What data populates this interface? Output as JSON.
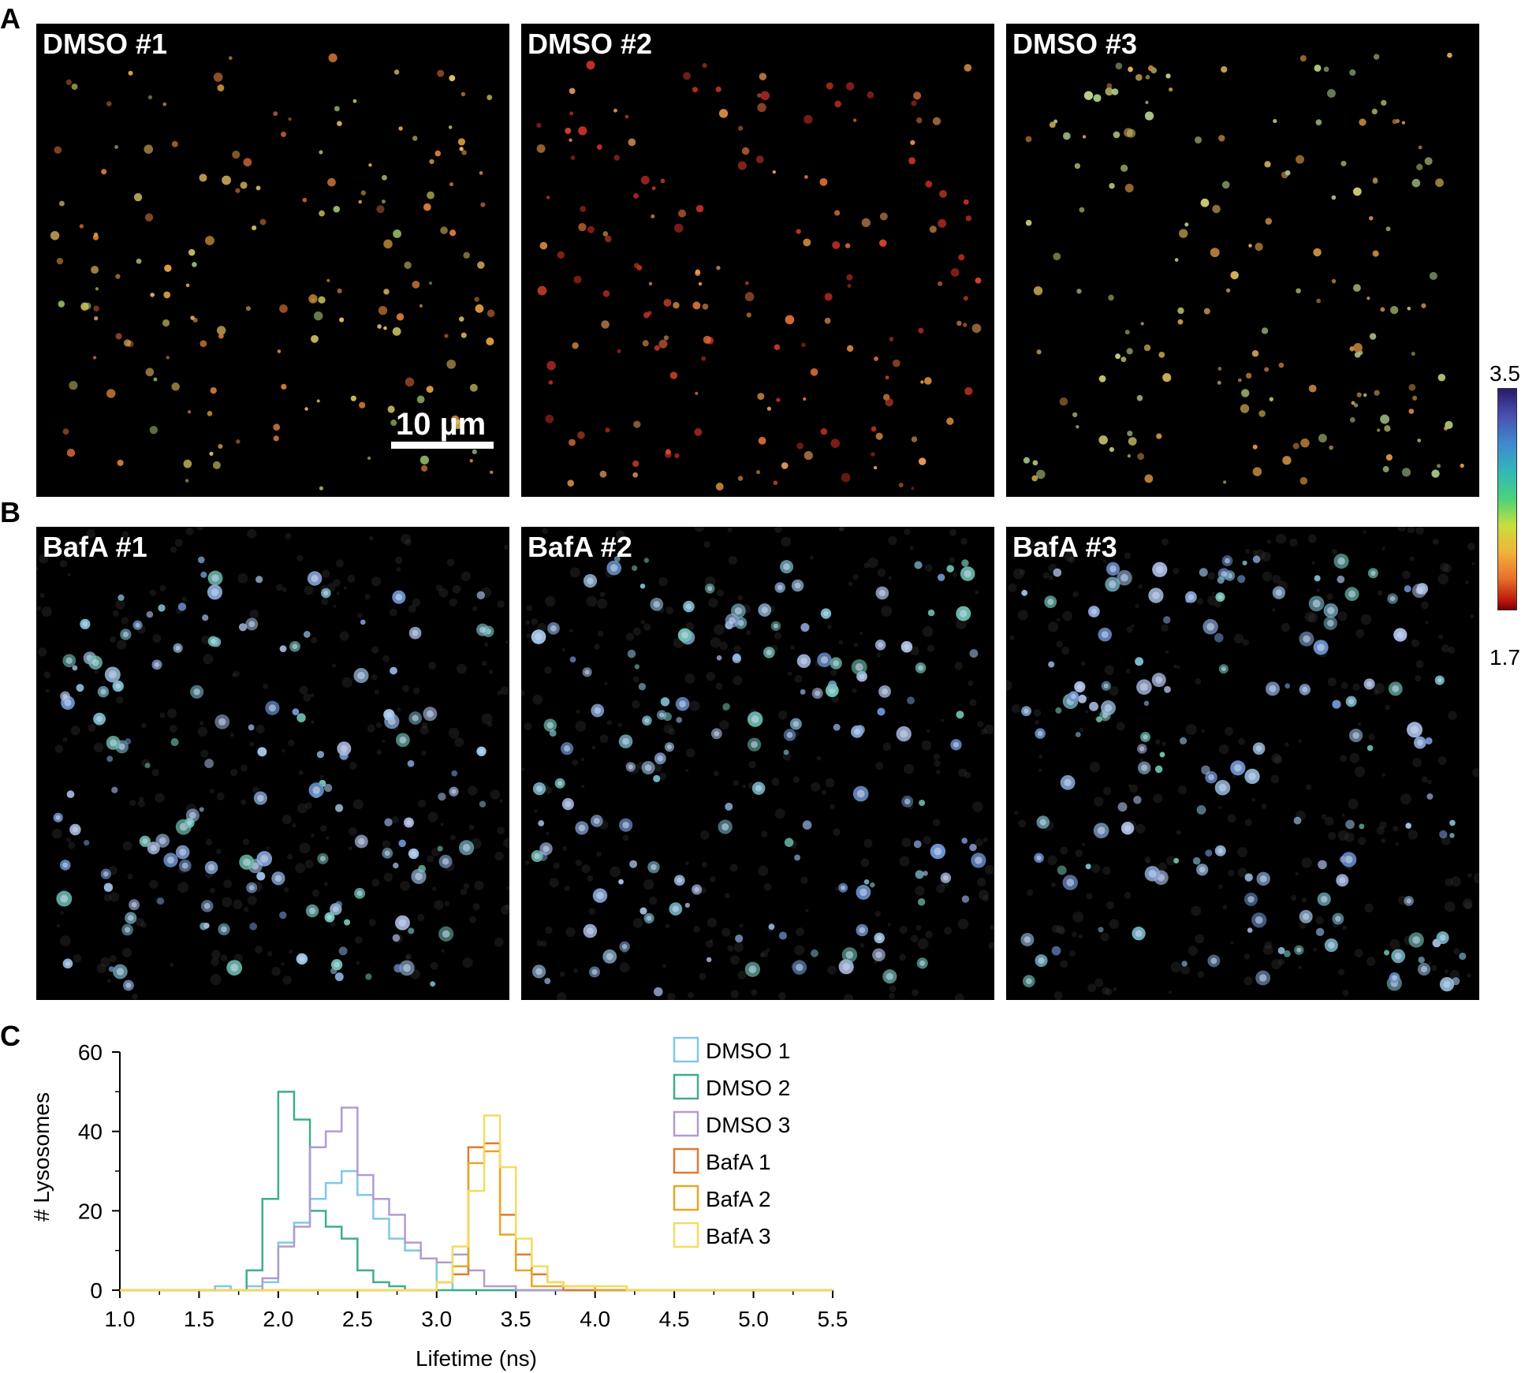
{
  "panels": {
    "A": "A",
    "B": "B",
    "C": "C"
  },
  "images": [
    {
      "label": "DMSO #1",
      "tone": "warm",
      "seed": 11
    },
    {
      "label": "DMSO #2",
      "tone": "red",
      "seed": 23
    },
    {
      "label": "DMSO #3",
      "tone": "warm-light",
      "seed": 37
    },
    {
      "label": "BafA #1",
      "tone": "blue",
      "seed": 41
    },
    {
      "label": "BafA #2",
      "tone": "blue",
      "seed": 53
    },
    {
      "label": "BafA #3",
      "tone": "blue",
      "seed": 67
    }
  ],
  "scale_bar": {
    "label": "10 µm"
  },
  "colorbar": {
    "max": "3.5",
    "min": "1.7"
  },
  "chart_data": {
    "type": "line",
    "xlabel": "Lifetime (ns)",
    "ylabel": "# Lysosomes",
    "xlim": [
      1.0,
      5.5
    ],
    "ylim": [
      0,
      60
    ],
    "xticks": [
      "1.0",
      "1.5",
      "2.0",
      "2.5",
      "3.0",
      "3.5",
      "4.0",
      "4.5",
      "5.0",
      "5.5"
    ],
    "yticks": [
      "0",
      "20",
      "40",
      "60"
    ],
    "bin_width": 0.1,
    "bin_starts": [
      1.6,
      1.7,
      1.8,
      1.9,
      2.0,
      2.1,
      2.2,
      2.3,
      2.4,
      2.5,
      2.6,
      2.7,
      2.8,
      2.9,
      3.0,
      3.1,
      3.2,
      3.3,
      3.4,
      3.5,
      3.6,
      3.7,
      3.8,
      3.9,
      4.0,
      4.1,
      4.2
    ],
    "legend_position": "top-right",
    "series": [
      {
        "name": "DMSO 1",
        "color": "#7ec8ea",
        "values": [
          1,
          0,
          1,
          2,
          12,
          17,
          23,
          27,
          30,
          24,
          18,
          13,
          10,
          8,
          2,
          0,
          0,
          0,
          0,
          0,
          0,
          0,
          0,
          0,
          0,
          0,
          0
        ]
      },
      {
        "name": "DMSO 2",
        "color": "#3fae8a",
        "values": [
          0,
          0,
          5,
          23,
          50,
          43,
          20,
          16,
          13,
          5,
          2,
          1,
          0,
          0,
          0,
          0,
          0,
          0,
          0,
          0,
          0,
          0,
          0,
          0,
          0,
          0,
          0
        ]
      },
      {
        "name": "DMSO 3",
        "color": "#b39bcf",
        "values": [
          0,
          0,
          0,
          3,
          11,
          16,
          36,
          40,
          46,
          29,
          23,
          19,
          12,
          8,
          7,
          9,
          5,
          1,
          1,
          0,
          0,
          0,
          0,
          0,
          0,
          0,
          0
        ]
      },
      {
        "name": "BafA 1",
        "color": "#de7b33",
        "values": [
          0,
          0,
          0,
          0,
          0,
          0,
          0,
          0,
          0,
          0,
          0,
          0,
          0,
          0,
          2,
          4,
          36,
          37,
          19,
          9,
          4,
          2,
          0,
          0,
          0,
          0,
          0
        ]
      },
      {
        "name": "BafA 2",
        "color": "#e7a627",
        "values": [
          0,
          0,
          0,
          0,
          0,
          0,
          0,
          0,
          0,
          0,
          0,
          0,
          0,
          0,
          2,
          6,
          32,
          35,
          14,
          5,
          1,
          1,
          1,
          1,
          0,
          0,
          0
        ]
      },
      {
        "name": "BafA 3",
        "color": "#f3dc60",
        "values": [
          0,
          0,
          0,
          0,
          0,
          0,
          0,
          0,
          0,
          0,
          0,
          0,
          0,
          0,
          2,
          11,
          25,
          44,
          31,
          13,
          6,
          2,
          1,
          1,
          1,
          1,
          0
        ]
      }
    ]
  }
}
